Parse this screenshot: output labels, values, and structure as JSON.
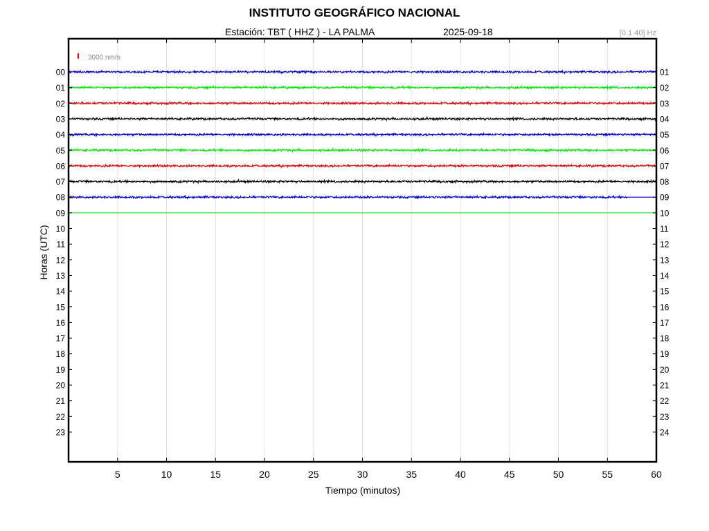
{
  "header": {
    "title": "INSTITUTO GEOGRÁFICO NACIONAL",
    "station": "Estación:  TBT ( HHZ ) - LA PALMA",
    "date": "2025-09-18",
    "filter": "[0.1 40] Hz"
  },
  "scale": {
    "label": "3000 nm/s",
    "color": "#ff0000"
  },
  "chart_data": {
    "type": "line",
    "xlabel": "Tiempo (minutos)",
    "ylabel": "Horas (UTC)",
    "xlim": [
      0,
      60
    ],
    "x_ticks": [
      5,
      10,
      15,
      20,
      25,
      30,
      35,
      40,
      45,
      50,
      55,
      60
    ],
    "left_ticks": [
      "00",
      "01",
      "02",
      "03",
      "04",
      "05",
      "06",
      "07",
      "08",
      "09",
      "10",
      "11",
      "12",
      "13",
      "14",
      "15",
      "16",
      "17",
      "18",
      "19",
      "20",
      "21",
      "22",
      "23"
    ],
    "right_ticks": [
      "01",
      "02",
      "03",
      "04",
      "05",
      "06",
      "07",
      "08",
      "09",
      "10",
      "11",
      "12",
      "13",
      "14",
      "15",
      "16",
      "17",
      "18",
      "19",
      "20",
      "21",
      "22",
      "23",
      "24"
    ],
    "grid": true,
    "series": [
      {
        "hour": 0,
        "color": "#0000cc",
        "data_until_minute": 60,
        "amplitude": "low"
      },
      {
        "hour": 1,
        "color": "#00e600",
        "data_until_minute": 60,
        "amplitude": "low"
      },
      {
        "hour": 2,
        "color": "#dd0000",
        "data_until_minute": 60,
        "amplitude": "low"
      },
      {
        "hour": 3,
        "color": "#000000",
        "data_until_minute": 60,
        "amplitude": "low"
      },
      {
        "hour": 4,
        "color": "#0000cc",
        "data_until_minute": 60,
        "amplitude": "low"
      },
      {
        "hour": 5,
        "color": "#00e600",
        "data_until_minute": 60,
        "amplitude": "low"
      },
      {
        "hour": 6,
        "color": "#dd0000",
        "data_until_minute": 60,
        "amplitude": "low"
      },
      {
        "hour": 7,
        "color": "#000000",
        "data_until_minute": 60,
        "amplitude": "low"
      },
      {
        "hour": 8,
        "color": "#0000cc",
        "data_until_minute": 57,
        "amplitude": "low"
      },
      {
        "hour": 9,
        "color": "#00e600",
        "data_until_minute": 0,
        "amplitude": "none"
      }
    ]
  }
}
